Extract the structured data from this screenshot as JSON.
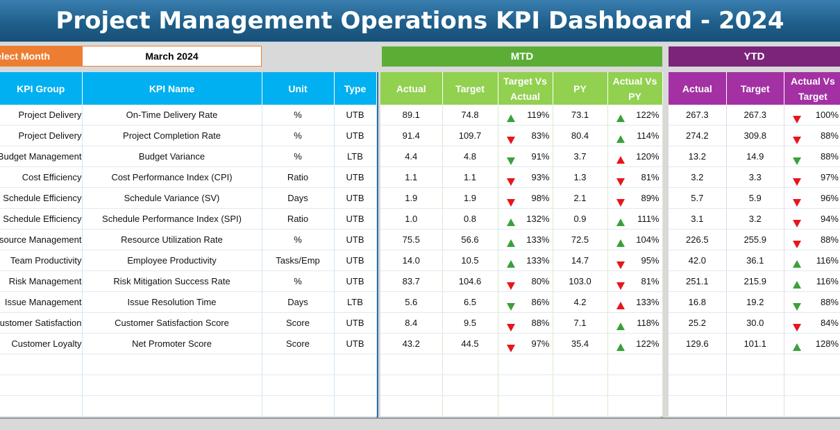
{
  "title": "Project Management Operations KPI Dashboard - 2024",
  "select_month": {
    "label": "Select Month",
    "value": "March 2024"
  },
  "sections": {
    "mtd": "MTD",
    "ytd": "YTD"
  },
  "colors": {
    "title": "#1f5f8b",
    "kpi_header": "#00b0f0",
    "mtd_header": "#92d050",
    "mtd_bar": "#5cad35",
    "ytd_header": "#a331a3",
    "ytd_bar": "#7b247a",
    "select_label": "#ed7d31",
    "up_arrow": "#3aa13a",
    "down_arrow": "#e8151b"
  },
  "headers": {
    "kpi": [
      "KPI Group",
      "KPI Name",
      "Unit",
      "Type"
    ],
    "mtd": [
      "Actual",
      "Target",
      "Target Vs Actual",
      "PY",
      "Actual Vs PY"
    ],
    "ytd": [
      "Actual",
      "Target",
      "Actual Vs Target"
    ]
  },
  "rows": [
    {
      "group": "Project Delivery",
      "name": "On-Time Delivery Rate",
      "unit": "%",
      "type": "UTB",
      "mtd_actual": "89.1",
      "mtd_target": "74.8",
      "tva": "119%",
      "tva_icon": "up-green",
      "py": "73.1",
      "avpy": "122%",
      "avpy_icon": "up-green",
      "ytd_actual": "267.3",
      "ytd_target": "267.3",
      "ytd_avt": "100%",
      "ytd_icon": "down-red"
    },
    {
      "group": "Project Delivery",
      "name": "Project Completion Rate",
      "unit": "%",
      "type": "UTB",
      "mtd_actual": "91.4",
      "mtd_target": "109.7",
      "tva": "83%",
      "tva_icon": "down-red",
      "py": "80.4",
      "avpy": "114%",
      "avpy_icon": "up-green",
      "ytd_actual": "274.2",
      "ytd_target": "309.8",
      "ytd_avt": "88%",
      "ytd_icon": "down-red"
    },
    {
      "group": "Budget Management",
      "name": "Budget Variance",
      "unit": "%",
      "type": "LTB",
      "mtd_actual": "4.4",
      "mtd_target": "4.8",
      "tva": "91%",
      "tva_icon": "down-green",
      "py": "3.7",
      "avpy": "120%",
      "avpy_icon": "up-red",
      "ytd_actual": "13.2",
      "ytd_target": "14.9",
      "ytd_avt": "88%",
      "ytd_icon": "down-green"
    },
    {
      "group": "Cost Efficiency",
      "name": "Cost Performance Index (CPI)",
      "unit": "Ratio",
      "type": "UTB",
      "mtd_actual": "1.1",
      "mtd_target": "1.1",
      "tva": "93%",
      "tva_icon": "down-red",
      "py": "1.3",
      "avpy": "81%",
      "avpy_icon": "down-red",
      "ytd_actual": "3.2",
      "ytd_target": "3.3",
      "ytd_avt": "97%",
      "ytd_icon": "down-red"
    },
    {
      "group": "Schedule Efficiency",
      "name": "Schedule Variance (SV)",
      "unit": "Days",
      "type": "UTB",
      "mtd_actual": "1.9",
      "mtd_target": "1.9",
      "tva": "98%",
      "tva_icon": "down-red",
      "py": "2.1",
      "avpy": "89%",
      "avpy_icon": "down-red",
      "ytd_actual": "5.7",
      "ytd_target": "5.9",
      "ytd_avt": "96%",
      "ytd_icon": "down-red"
    },
    {
      "group": "Schedule Efficiency",
      "name": "Schedule Performance Index (SPI)",
      "unit": "Ratio",
      "type": "UTB",
      "mtd_actual": "1.0",
      "mtd_target": "0.8",
      "tva": "132%",
      "tva_icon": "up-green",
      "py": "0.9",
      "avpy": "111%",
      "avpy_icon": "up-green",
      "ytd_actual": "3.1",
      "ytd_target": "3.2",
      "ytd_avt": "94%",
      "ytd_icon": "down-red"
    },
    {
      "group": "Resource Management",
      "name": "Resource Utilization Rate",
      "unit": "%",
      "type": "UTB",
      "mtd_actual": "75.5",
      "mtd_target": "56.6",
      "tva": "133%",
      "tva_icon": "up-green",
      "py": "72.5",
      "avpy": "104%",
      "avpy_icon": "up-green",
      "ytd_actual": "226.5",
      "ytd_target": "255.9",
      "ytd_avt": "88%",
      "ytd_icon": "down-red"
    },
    {
      "group": "Team Productivity",
      "name": "Employee Productivity",
      "unit": "Tasks/Emp",
      "type": "UTB",
      "mtd_actual": "14.0",
      "mtd_target": "10.5",
      "tva": "133%",
      "tva_icon": "up-green",
      "py": "14.7",
      "avpy": "95%",
      "avpy_icon": "down-red",
      "ytd_actual": "42.0",
      "ytd_target": "36.1",
      "ytd_avt": "116%",
      "ytd_icon": "up-green"
    },
    {
      "group": "Risk Management",
      "name": "Risk Mitigation Success Rate",
      "unit": "%",
      "type": "UTB",
      "mtd_actual": "83.7",
      "mtd_target": "104.6",
      "tva": "80%",
      "tva_icon": "down-red",
      "py": "103.0",
      "avpy": "81%",
      "avpy_icon": "down-red",
      "ytd_actual": "251.1",
      "ytd_target": "215.9",
      "ytd_avt": "116%",
      "ytd_icon": "up-green"
    },
    {
      "group": "Issue Management",
      "name": "Issue Resolution Time",
      "unit": "Days",
      "type": "LTB",
      "mtd_actual": "5.6",
      "mtd_target": "6.5",
      "tva": "86%",
      "tva_icon": "down-green",
      "py": "4.2",
      "avpy": "133%",
      "avpy_icon": "up-red",
      "ytd_actual": "16.8",
      "ytd_target": "19.2",
      "ytd_avt": "88%",
      "ytd_icon": "down-green"
    },
    {
      "group": "Customer Satisfaction",
      "name": "Customer Satisfaction Score",
      "unit": "Score",
      "type": "UTB",
      "mtd_actual": "8.4",
      "mtd_target": "9.5",
      "tva": "88%",
      "tva_icon": "down-red",
      "py": "7.1",
      "avpy": "118%",
      "avpy_icon": "up-green",
      "ytd_actual": "25.2",
      "ytd_target": "30.0",
      "ytd_avt": "84%",
      "ytd_icon": "down-red"
    },
    {
      "group": "Customer Loyalty",
      "name": "Net Promoter Score",
      "unit": "Score",
      "type": "UTB",
      "mtd_actual": "43.2",
      "mtd_target": "44.5",
      "tva": "97%",
      "tva_icon": "down-red",
      "py": "35.4",
      "avpy": "122%",
      "avpy_icon": "up-green",
      "ytd_actual": "129.6",
      "ytd_target": "101.1",
      "ytd_avt": "128%",
      "ytd_icon": "up-green"
    }
  ]
}
